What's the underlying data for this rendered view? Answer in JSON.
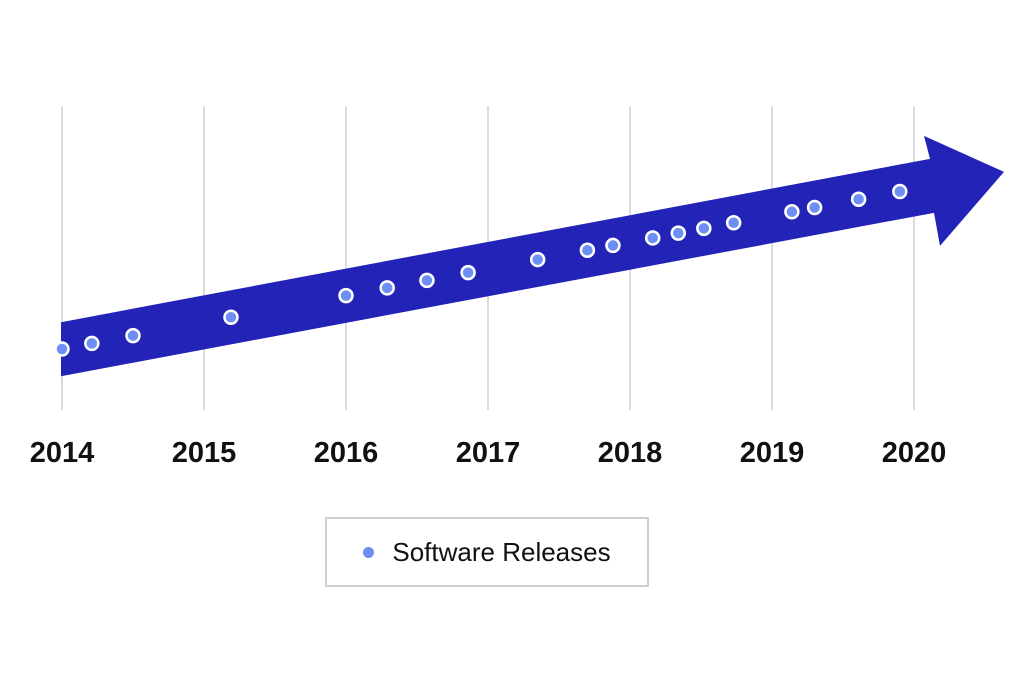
{
  "chart_data": {
    "type": "scatter",
    "title": "",
    "xlabel": "",
    "ylabel": "",
    "x_ticks": [
      "2014",
      "2015",
      "2016",
      "2017",
      "2018",
      "2019",
      "2020"
    ],
    "xlim": [
      2014,
      2020.6
    ],
    "grid": true,
    "legend": "bottom-center",
    "trend_arrow": {
      "from": 2014,
      "to": 2020.6
    },
    "series": [
      {
        "name": "Software Releases",
        "x": [
          2014.0,
          2014.21,
          2014.5,
          2015.19,
          2016.0,
          2016.29,
          2016.57,
          2016.86,
          2017.35,
          2017.7,
          2017.88,
          2018.16,
          2018.34,
          2018.52,
          2018.73,
          2019.14,
          2019.3,
          2019.61,
          2019.9
        ]
      }
    ]
  },
  "colors": {
    "arrow": "#2323b8",
    "marker_fill": "#6c8ef5",
    "marker_stroke": "#ffffff",
    "grid": "#dcdcdc"
  },
  "legend": {
    "label": "Software Releases"
  }
}
